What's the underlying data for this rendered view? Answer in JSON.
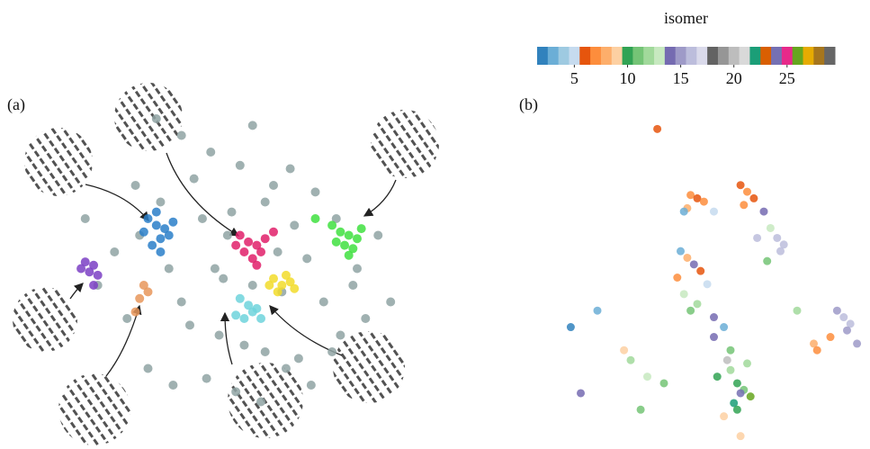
{
  "chart_data": [
    {
      "type": "scatter",
      "label": "(a)",
      "xlim": [
        0,
        100
      ],
      "ylim": [
        0,
        100
      ],
      "series": [
        {
          "color": "#8fa3a3",
          "x": [
            32,
            38,
            45,
            52,
            41,
            60,
            58,
            70,
            75,
            65,
            50,
            28,
            22,
            35,
            48,
            55,
            62,
            72,
            80,
            85,
            18,
            25,
            40,
            47,
            53,
            58,
            66,
            76,
            82,
            30,
            36,
            44,
            51,
            57,
            63,
            69,
            74,
            33,
            27,
            43,
            49,
            61,
            68,
            79,
            88,
            15,
            55,
            38,
            46,
            64
          ],
          "y": [
            90,
            85,
            80,
            76,
            72,
            70,
            65,
            68,
            60,
            58,
            62,
            55,
            50,
            45,
            42,
            40,
            38,
            35,
            45,
            55,
            40,
            30,
            28,
            25,
            22,
            20,
            18,
            25,
            30,
            15,
            10,
            12,
            8,
            5,
            15,
            10,
            20,
            65,
            70,
            60,
            55,
            50,
            48,
            40,
            35,
            60,
            88,
            35,
            45,
            75
          ]
        },
        {
          "color": "#2a7fc9",
          "x": [
            30,
            32,
            34,
            33,
            31,
            35,
            29,
            33,
            36,
            32
          ],
          "y": [
            60,
            58,
            57,
            54,
            52,
            55,
            56,
            50,
            59,
            62
          ]
        },
        {
          "color": "#e0206a",
          "x": [
            52,
            54,
            56,
            58,
            53,
            57,
            55,
            60,
            51,
            56
          ],
          "y": [
            55,
            53,
            52,
            54,
            50,
            50,
            48,
            56,
            52,
            46
          ]
        },
        {
          "color": "#3fe03f",
          "x": [
            74,
            76,
            78,
            80,
            77,
            79,
            81,
            75,
            70,
            78
          ],
          "y": [
            58,
            56,
            55,
            54,
            52,
            51,
            57,
            53,
            60,
            49
          ]
        },
        {
          "color": "#f2dc2a",
          "x": [
            60,
            62,
            64,
            61,
            63,
            65,
            59
          ],
          "y": [
            42,
            40,
            41,
            38,
            43,
            39,
            40
          ]
        },
        {
          "color": "#6fd3dc",
          "x": [
            52,
            54,
            55,
            53,
            56,
            51,
            57
          ],
          "y": [
            36,
            34,
            32,
            30,
            33,
            31,
            30
          ]
        },
        {
          "color": "#7b3fc4",
          "x": [
            15,
            17,
            16,
            18,
            14,
            17
          ],
          "y": [
            47,
            46,
            44,
            43,
            45,
            40
          ]
        },
        {
          "color": "#e8975a",
          "x": [
            29,
            30,
            28,
            27
          ],
          "y": [
            40,
            38,
            36,
            32
          ]
        }
      ]
    },
    {
      "type": "scatter",
      "label": "(b)",
      "xlim": [
        0,
        100
      ],
      "ylim": [
        0,
        100
      ],
      "x": [
        38,
        48,
        50,
        52,
        47,
        55,
        46,
        63,
        65,
        67,
        64,
        70,
        72,
        74,
        76,
        71,
        45,
        47,
        49,
        51,
        44,
        53,
        46,
        50,
        48,
        55,
        58,
        56,
        60,
        62,
        64,
        63,
        61,
        59,
        65,
        66,
        62,
        60,
        58,
        63,
        92,
        94,
        96,
        98,
        95,
        90,
        85,
        86,
        20,
        12,
        15,
        28,
        30,
        35,
        40,
        33,
        68,
        75,
        80,
        55
      ],
      "y": [
        95,
        75,
        74,
        73,
        71,
        70,
        70,
        78,
        76,
        74,
        72,
        70,
        65,
        62,
        60,
        55,
        58,
        56,
        54,
        52,
        50,
        48,
        45,
        42,
        40,
        38,
        35,
        20,
        22,
        18,
        16,
        15,
        12,
        25,
        24,
        14,
        10,
        28,
        8,
        2,
        40,
        38,
        36,
        30,
        34,
        32,
        30,
        28,
        40,
        35,
        15,
        28,
        25,
        20,
        18,
        10,
        62,
        58,
        40,
        32
      ],
      "values": [
        6,
        7,
        6,
        7,
        8,
        5,
        3,
        6,
        7,
        6,
        7,
        14,
        13,
        16,
        16,
        11,
        3,
        8,
        14,
        6,
        7,
        5,
        13,
        12,
        11,
        14,
        3,
        10,
        12,
        10,
        11,
        24,
        22,
        20,
        12,
        26,
        10,
        11,
        9,
        9,
        15,
        16,
        16,
        15,
        15,
        7,
        8,
        7,
        3,
        2,
        14,
        9,
        12,
        13,
        11,
        11,
        16,
        16,
        12,
        14
      ],
      "colorbar": {
        "label": "isomer",
        "lim": [
          1.5,
          29.5
        ],
        "ticks": [
          5,
          10,
          15,
          20,
          25
        ],
        "colors": [
          "#3182bd",
          "#6baed6",
          "#9ecae1",
          "#c6dbef",
          "#e6550d",
          "#fd8d3c",
          "#fdae6b",
          "#fdd0a2",
          "#31a354",
          "#74c476",
          "#a1d99b",
          "#c7e9c0",
          "#756bb1",
          "#9e9ac8",
          "#bcbddc",
          "#dadaeb",
          "#636363",
          "#969696",
          "#bdbdbd",
          "#d9d9d9",
          "#1b9e77",
          "#d95f02",
          "#7570b3",
          "#e7298a",
          "#66a61e",
          "#e6ab02",
          "#a6761d",
          "#666666"
        ]
      }
    }
  ]
}
